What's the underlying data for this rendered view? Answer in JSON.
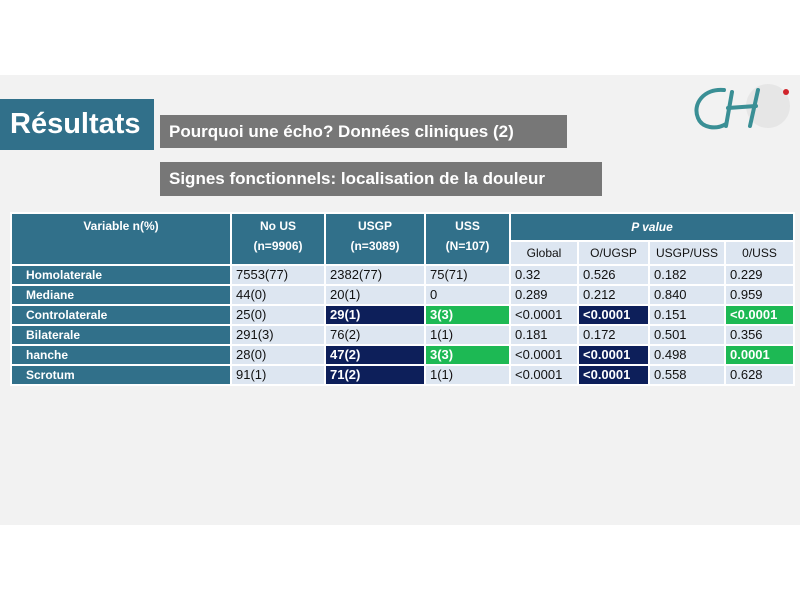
{
  "title": "Résultats",
  "subtitle1": "Pourquoi une écho? Données cliniques (2)",
  "subtitle2": "Signes fonctionnels: localisation de la douleur",
  "logo_icon": "ch-hospital-logo",
  "colors": {
    "header": "#31708a",
    "navy": "#0d1f5a",
    "green": "#1db954",
    "cell": "#dde6f1"
  },
  "table": {
    "headers": {
      "variable": "Variable n(%)",
      "no_us": "No US",
      "no_us_n": "(n=9906)",
      "usgp": "USGP",
      "usgp_n": "(n=3089)",
      "uss": "USS",
      "uss_n": "(N=107)",
      "pvalue": "P value"
    },
    "subheaders": [
      "Global",
      "O/UGSP",
      "USGP/USS",
      "0/USS"
    ],
    "rows": [
      {
        "label": "Homolaterale",
        "no_us": "7553(77)",
        "usgp": "2382(77)",
        "uss": "75(71)",
        "global": "0.32",
        "o_ugsp": "0.526",
        "usgp_uss": "0.182",
        "o_uss": "0.229"
      },
      {
        "label": "Mediane",
        "no_us": "44(0)",
        "usgp": "20(1)",
        "uss": "0",
        "global": "0.289",
        "o_ugsp": "0.212",
        "usgp_uss": "0.840",
        "o_uss": "0.959"
      },
      {
        "label": "Controlaterale",
        "no_us": "25(0)",
        "usgp": "29(1)",
        "uss": "3(3)",
        "global": "<0.0001",
        "o_ugsp": "<0.0001",
        "usgp_uss": "0.151",
        "o_uss": "<0.0001"
      },
      {
        "label": "Bilaterale",
        "no_us": "291(3)",
        "usgp": "76(2)",
        "uss": "1(1)",
        "global": "0.181",
        "o_ugsp": "0.172",
        "usgp_uss": "0.501",
        "o_uss": "0.356"
      },
      {
        "label": "hanche",
        "no_us": "28(0)",
        "usgp": "47(2)",
        "uss": "3(3)",
        "global": "<0.0001",
        "o_ugsp": "<0.0001",
        "usgp_uss": "0.498",
        "o_uss": "0.0001"
      },
      {
        "label": "Scrotum",
        "no_us": "91(1)",
        "usgp": "71(2)",
        "uss": "1(1)",
        "global": "<0.0001",
        "o_ugsp": "<0.0001",
        "usgp_uss": "0.558",
        "o_uss": "0.628"
      }
    ]
  }
}
